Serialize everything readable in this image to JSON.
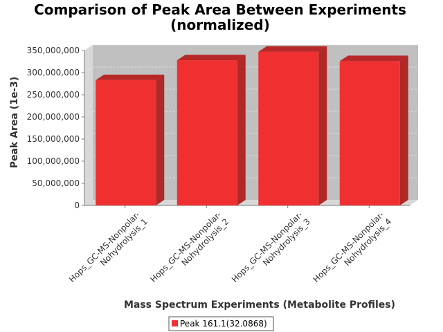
{
  "chart_data": {
    "type": "bar",
    "title_line1": "Comparison of Peak Area Between Experiments",
    "title_line2": "(normalized)",
    "xlabel": "Mass Spectrum Experiments (Metabolite Profiles)",
    "ylabel": "Peak Area (1e-3)",
    "ylim": [
      0,
      350000000
    ],
    "yticks": [
      0,
      50000000,
      100000000,
      150000000,
      200000000,
      250000000,
      300000000,
      350000000
    ],
    "ytick_labels": [
      "0",
      "50,000,000",
      "100,000,000",
      "150,000,000",
      "200,000,000",
      "250,000,000",
      "300,000,000",
      "350,000,000"
    ],
    "categories": [
      [
        "Hops_GC-MS-Nonpolar-",
        "Nohydrolysis_1"
      ],
      [
        "Hops_GC-MS-Nonpolar-",
        "Nohydrolysis_2"
      ],
      [
        "Hops_GC-MS-Nonpolar-",
        "Nohydrolysis_3"
      ],
      [
        "Hops_GC-MS-Nonpolar-",
        "Nohydrolysis_4"
      ]
    ],
    "series": [
      {
        "name": "Peak 161.1(32.0868)",
        "values": [
          283000000,
          328000000,
          347000000,
          326000000
        ]
      }
    ],
    "grid": true,
    "legend_position": "bottom",
    "colors": {
      "bar_front": "#f03030",
      "bar_top": "#b82828",
      "bar_side": "#b02828",
      "plot_bg": "#c0c0c0",
      "wall": "#d8d8d8"
    }
  }
}
